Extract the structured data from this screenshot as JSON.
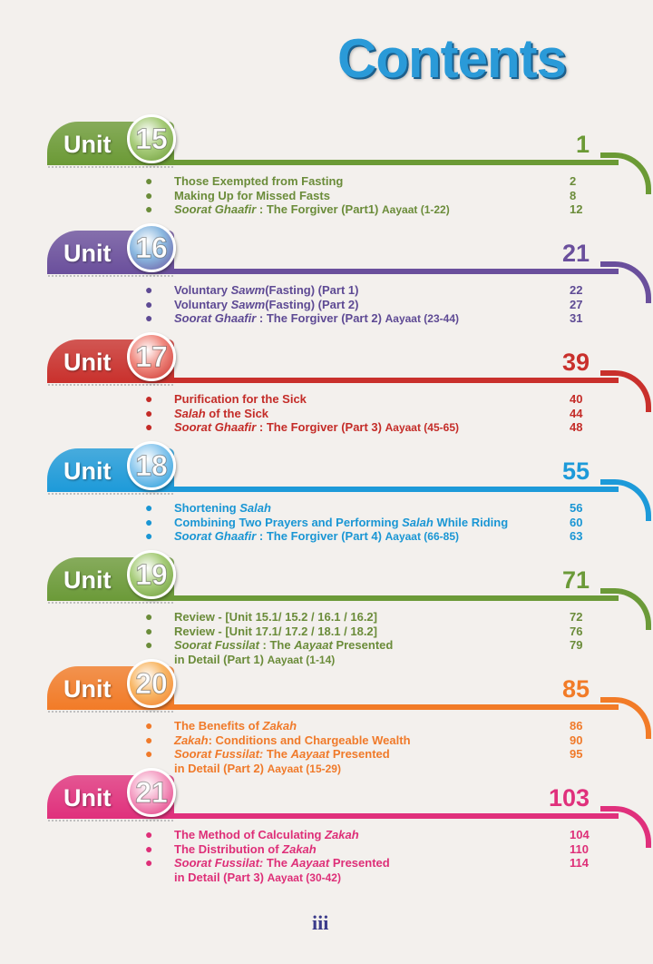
{
  "title": "Contents",
  "units": [
    {
      "label": "Unit",
      "number": "15",
      "page": "1",
      "color": "#6b9a35",
      "text_color": "#6b8c3a",
      "circle": "#a7cc7a",
      "items": [
        {
          "segments": [
            {
              "t": "Those Exempted from Fasting"
            }
          ],
          "page": "2"
        },
        {
          "segments": [
            {
              "t": "Making Up for Missed Fasts"
            }
          ],
          "page": "8"
        },
        {
          "segments": [
            {
              "t": "Soorat Ghaafir",
              "i": true
            },
            {
              "t": " : The Forgiver (Part1) "
            },
            {
              "t": "Aayaat (1-22)",
              "s": true
            }
          ],
          "page": "12"
        }
      ]
    },
    {
      "label": "Unit",
      "number": "16",
      "page": "21",
      "color": "#6a4f9c",
      "text_color": "#5e4a94",
      "circle": "#8ab8e0",
      "items": [
        {
          "segments": [
            {
              "t": "Voluntary "
            },
            {
              "t": "Sawm",
              "i": true
            },
            {
              "t": "(Fasting) (Part 1)"
            }
          ],
          "page": "22"
        },
        {
          "segments": [
            {
              "t": "Voluntary "
            },
            {
              "t": "Sawm",
              "i": true
            },
            {
              "t": "(Fasting) (Part 2)"
            }
          ],
          "page": "27"
        },
        {
          "segments": [
            {
              "t": "Soorat Ghaafir",
              "i": true
            },
            {
              "t": " : The Forgiver (Part 2) "
            },
            {
              "t": "Aayaat (23-44)",
              "s": true
            }
          ],
          "page": "31"
        }
      ]
    },
    {
      "label": "Unit",
      "number": "17",
      "page": "39",
      "color": "#c9302c",
      "text_color": "#c42c28",
      "circle": "#f08a80",
      "items": [
        {
          "segments": [
            {
              "t": "Purification for the Sick"
            }
          ],
          "page": "40"
        },
        {
          "segments": [
            {
              "t": "Salah",
              "i": true
            },
            {
              "t": " of the Sick"
            }
          ],
          "page": "44"
        },
        {
          "segments": [
            {
              "t": "Soorat Ghaafir",
              "i": true
            },
            {
              "t": " : The Forgiver (Part 3) "
            },
            {
              "t": "Aayaat (45-65)",
              "s": true
            }
          ],
          "page": "48"
        }
      ]
    },
    {
      "label": "Unit",
      "number": "18",
      "page": "55",
      "color": "#1d9ad9",
      "text_color": "#1a96d4",
      "circle": "#8cc8ee",
      "items": [
        {
          "segments": [
            {
              "t": "Shortening "
            },
            {
              "t": "Salah",
              "i": true
            }
          ],
          "page": "56"
        },
        {
          "segments": [
            {
              "t": "Combining Two Prayers and Performing "
            },
            {
              "t": "Salah",
              "i": true
            },
            {
              "t": " While Riding"
            }
          ],
          "page": "60"
        },
        {
          "segments": [
            {
              "t": "Soorat Ghaafir",
              "i": true
            },
            {
              "t": " : The Forgiver (Part 4) "
            },
            {
              "t": "Aayaat (66-85)",
              "s": true
            }
          ],
          "page": "63"
        }
      ]
    },
    {
      "label": "Unit",
      "number": "19",
      "page": "71",
      "color": "#6b9a38",
      "text_color": "#6b8c3a",
      "circle": "#a7cc7a",
      "items": [
        {
          "segments": [
            {
              "t": "Review - [Unit 15.1/ 15.2 / 16.1 / 16.2]"
            }
          ],
          "page": "72"
        },
        {
          "segments": [
            {
              "t": "Review - [Unit 17.1/ 17.2 / 18.1 / 18.2]"
            }
          ],
          "page": "76"
        },
        {
          "segments": [
            {
              "t": "Soorat Fussilat",
              "i": true
            },
            {
              "t": " : The "
            },
            {
              "t": "Aayaat",
              "i": true
            },
            {
              "t": " Presented"
            }
          ],
          "page": "79"
        },
        {
          "segments": [
            {
              "t": "in Detail (Part 1) "
            },
            {
              "t": "Aayaat (1-14)",
              "s": true
            }
          ],
          "nobullet": true
        }
      ]
    },
    {
      "label": "Unit",
      "number": "20",
      "page": "85",
      "color": "#f27b27",
      "text_color": "#f07a2a",
      "circle": "#f8b868",
      "items": [
        {
          "segments": [
            {
              "t": "The Benefits of "
            },
            {
              "t": "Zakah",
              "i": true
            }
          ],
          "page": "86"
        },
        {
          "segments": [
            {
              "t": "Zakah",
              "i": true
            },
            {
              "t": ": Conditions and Chargeable Wealth"
            }
          ],
          "page": "90"
        },
        {
          "segments": [
            {
              "t": "Soorat Fussilat:",
              "i": true
            },
            {
              "t": " The "
            },
            {
              "t": "Aayaat",
              "i": true
            },
            {
              "t": " Presented"
            }
          ],
          "page": "95"
        },
        {
          "segments": [
            {
              "t": "in Detail (Part 2) "
            },
            {
              "t": "Aayaat (15-29)",
              "s": true
            }
          ],
          "nobullet": true
        }
      ]
    },
    {
      "label": "Unit",
      "number": "21",
      "page": "103",
      "color": "#e0307c",
      "text_color": "#de2f78",
      "circle": "#f4a0c4",
      "items": [
        {
          "segments": [
            {
              "t": "The Method of Calculating "
            },
            {
              "t": "Zakah",
              "i": true
            }
          ],
          "page": "104"
        },
        {
          "segments": [
            {
              "t": "The Distribution of "
            },
            {
              "t": "Zakah",
              "i": true
            }
          ],
          "page": "110"
        },
        {
          "segments": [
            {
              "t": "Soorat Fussilat:",
              "i": true
            },
            {
              "t": " The "
            },
            {
              "t": "Aayaat",
              "i": true
            },
            {
              "t": " Presented"
            }
          ],
          "page": "114"
        },
        {
          "segments": [
            {
              "t": "in Detail (Part 3) "
            },
            {
              "t": "Aayaat (30-42)",
              "s": true
            }
          ],
          "nobullet": true
        }
      ]
    }
  ],
  "footer": {
    "page_number": "iii"
  }
}
